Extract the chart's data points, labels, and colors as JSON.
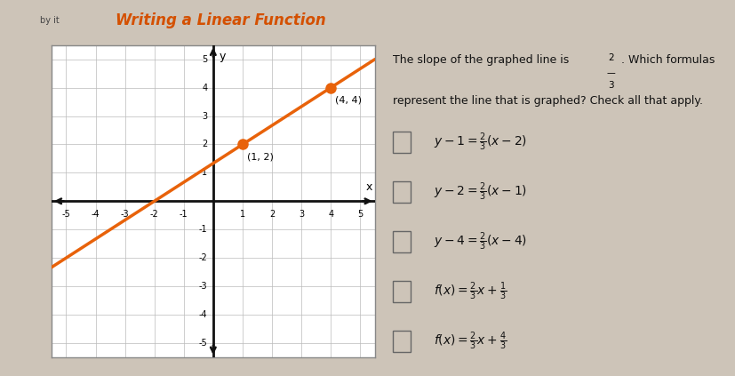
{
  "title": "Writing a Linear Function",
  "subtitle": "by it",
  "bg_color": "#cdc4b8",
  "header_bg": "#c8bfb0",
  "graph_bg": "#ffffff",
  "graph_border": "#888888",
  "line_color": "#e8620a",
  "dot_color": "#e8620a",
  "points": [
    [
      1,
      2
    ],
    [
      4,
      4
    ]
  ],
  "point_labels": [
    "(1, 2)",
    "(4, 4)"
  ],
  "slope_text1": "The slope of the graphed line is ",
  "slope_text2": ". Which formulas",
  "question_line2": "represent the line that is graphed? Check all that apply.",
  "title_color": "#d45000",
  "text_color": "#111111",
  "grid_color": "#bbbbbb",
  "axis_color": "#111111"
}
